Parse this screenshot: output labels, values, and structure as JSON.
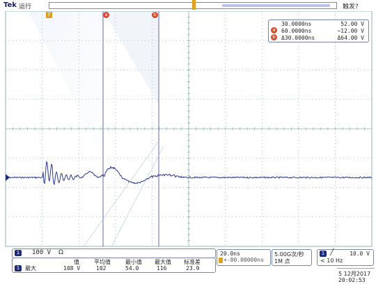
{
  "header": {
    "brand": "Tek",
    "run_state": "运行",
    "trigger_state": "触发?"
  },
  "markers": {
    "trigger_marker": "T",
    "cursor_a_label": "a",
    "cursor_b_label": "b"
  },
  "cursor_readout": {
    "a_time": "30.0000ns",
    "a_volt": "52.00 V",
    "b_time": "60.0000ns",
    "b_volt": "−12.00 V",
    "delta_time": "Δ30.0000ns",
    "delta_volt": "Δ64.00 V"
  },
  "channel": {
    "number": "1",
    "scale": "100 V",
    "coupling": "Ω"
  },
  "measurements": {
    "ch": "1",
    "label": "最大",
    "headers": [
      "值",
      "平均值",
      "最小值",
      "最大值",
      "标准差"
    ],
    "values": [
      "108 V",
      "102",
      "54.0",
      "116",
      "23.9"
    ]
  },
  "timebase": {
    "scale": "20.0ns",
    "position": "+-80.00000ns",
    "sample_rate": "5.00G次/秒",
    "record_length": "1M 点"
  },
  "trigger": {
    "ch": "1",
    "slope_icon": "rising-edge-icon",
    "level": "10.0 V",
    "frequency": "< 10 Hz"
  },
  "datetime": {
    "date": "5 12月2017",
    "time": "20:02:53"
  },
  "colors": {
    "trace": "#2b3a8c",
    "graticule": "#8fb5b3",
    "cursor": "#7b80c4",
    "accent": "#d9482b",
    "trigger_marker": "#e0a020"
  }
}
